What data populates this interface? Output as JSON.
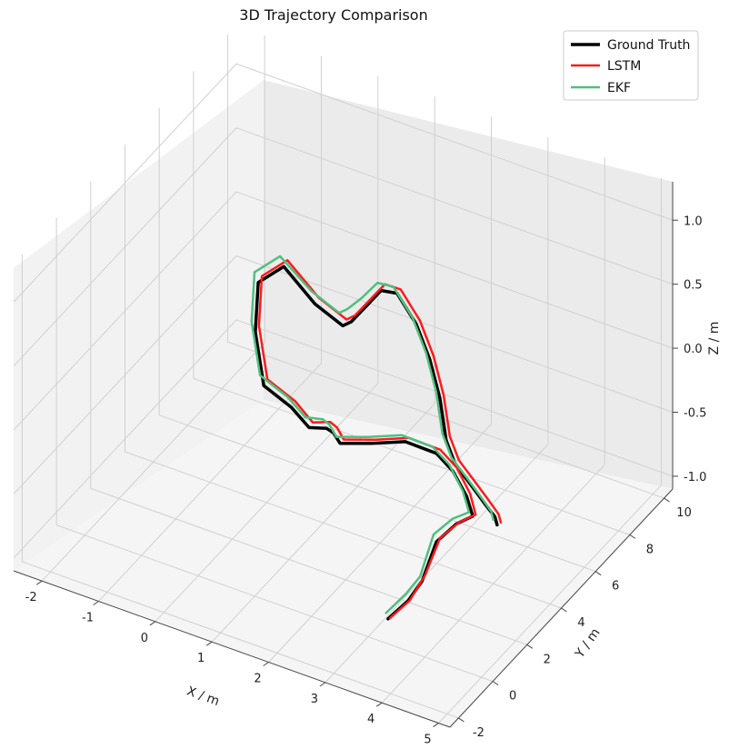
{
  "chart_data": {
    "type": "line",
    "projection": "3d",
    "title": "3D Trajectory Comparison",
    "xlabel": "X / m",
    "ylabel": "Y / m",
    "zlabel": "Z / m",
    "xlim": [
      -2.5,
      5.2
    ],
    "ylim": [
      -2.5,
      10.5
    ],
    "zlim": [
      -1.1,
      1.3
    ],
    "x_ticks": [
      "-2",
      "-1",
      "0",
      "1",
      "2",
      "3",
      "4",
      "5"
    ],
    "y_ticks": [
      "-2",
      "0",
      "2",
      "4",
      "6",
      "8",
      "10"
    ],
    "z_ticks": [
      "-1.0",
      "-0.5",
      "0.0",
      "0.5",
      "1.0"
    ],
    "grid": true,
    "legend_position": "top-right",
    "series": [
      {
        "name": "Ground Truth",
        "color": "#000000",
        "points": [
          [
            3.2,
            0.5,
            -1.0
          ],
          [
            3.4,
            1.0,
            -0.9
          ],
          [
            3.5,
            1.5,
            -0.8
          ],
          [
            3.6,
            2.0,
            -0.55
          ],
          [
            3.8,
            2.5,
            -0.45
          ],
          [
            4.0,
            2.8,
            -0.4
          ],
          [
            3.8,
            3.1,
            -0.32
          ],
          [
            3.5,
            3.3,
            -0.2
          ],
          [
            3.3,
            3.0,
            -0.05
          ],
          [
            2.9,
            2.5,
            0.05
          ],
          [
            2.4,
            2.2,
            0.0
          ],
          [
            1.9,
            2.0,
            -0.05
          ],
          [
            1.6,
            2.6,
            -0.1
          ],
          [
            1.3,
            3.2,
            -0.2
          ],
          [
            0.9,
            3.5,
            -0.3
          ],
          [
            0.5,
            3.8,
            -0.25
          ],
          [
            0.1,
            3.5,
            -0.1
          ],
          [
            -0.2,
            4.0,
            0.2
          ],
          [
            -0.3,
            4.5,
            0.5
          ],
          [
            0.0,
            5.0,
            0.6
          ],
          [
            0.4,
            5.5,
            0.3
          ],
          [
            0.8,
            5.8,
            0.15
          ],
          [
            1.1,
            5.3,
            0.3
          ],
          [
            1.5,
            4.8,
            0.55
          ],
          [
            1.9,
            4.4,
            0.8
          ],
          [
            2.3,
            4.0,
            0.9
          ],
          [
            2.7,
            3.8,
            0.75
          ],
          [
            3.0,
            3.6,
            0.55
          ],
          [
            3.3,
            3.2,
            0.35
          ],
          [
            3.5,
            2.9,
            0.1
          ],
          [
            3.6,
            3.1,
            -0.1
          ],
          [
            3.8,
            3.3,
            -0.25
          ],
          [
            4.1,
            3.2,
            -0.35
          ],
          [
            4.3,
            3.1,
            -0.4
          ],
          [
            4.4,
            2.9,
            -0.42
          ]
        ]
      },
      {
        "name": "LSTM",
        "color": "#ff1a1a",
        "points": [
          [
            3.25,
            0.45,
            -0.98
          ],
          [
            3.45,
            0.95,
            -0.88
          ],
          [
            3.55,
            1.5,
            -0.75
          ],
          [
            3.65,
            2.05,
            -0.52
          ],
          [
            3.85,
            2.5,
            -0.43
          ],
          [
            4.05,
            2.8,
            -0.38
          ],
          [
            3.85,
            3.15,
            -0.3
          ],
          [
            3.55,
            3.35,
            -0.17
          ],
          [
            3.35,
            3.05,
            -0.02
          ],
          [
            2.95,
            2.55,
            0.08
          ],
          [
            2.45,
            2.25,
            0.03
          ],
          [
            1.95,
            2.05,
            -0.02
          ],
          [
            1.65,
            2.65,
            -0.06
          ],
          [
            1.35,
            3.25,
            -0.15
          ],
          [
            0.95,
            3.55,
            -0.26
          ],
          [
            0.55,
            3.85,
            -0.2
          ],
          [
            0.15,
            3.55,
            -0.05
          ],
          [
            -0.15,
            4.05,
            0.25
          ],
          [
            -0.25,
            4.55,
            0.55
          ],
          [
            0.05,
            5.05,
            0.65
          ],
          [
            0.45,
            5.55,
            0.35
          ],
          [
            0.85,
            5.85,
            0.2
          ],
          [
            1.15,
            5.35,
            0.35
          ],
          [
            1.55,
            4.85,
            0.6
          ],
          [
            1.95,
            4.45,
            0.85
          ],
          [
            2.35,
            4.05,
            0.93
          ],
          [
            2.75,
            3.85,
            0.78
          ],
          [
            3.05,
            3.65,
            0.58
          ],
          [
            3.35,
            3.25,
            0.38
          ],
          [
            3.55,
            2.95,
            0.13
          ],
          [
            3.65,
            3.15,
            -0.07
          ],
          [
            3.85,
            3.35,
            -0.22
          ],
          [
            4.15,
            3.25,
            -0.32
          ],
          [
            4.35,
            3.15,
            -0.38
          ],
          [
            4.45,
            2.95,
            -0.4
          ]
        ]
      },
      {
        "name": "EKF",
        "color": "#4fbf7f",
        "points": [
          [
            3.15,
            0.55,
            -0.97
          ],
          [
            3.35,
            1.05,
            -0.86
          ],
          [
            3.45,
            1.55,
            -0.78
          ],
          [
            3.55,
            2.0,
            -0.5
          ],
          [
            3.75,
            2.45,
            -0.41
          ],
          [
            3.95,
            2.75,
            -0.37
          ],
          [
            3.75,
            3.05,
            -0.28
          ],
          [
            3.45,
            3.25,
            -0.15
          ],
          [
            3.25,
            2.95,
            0.0
          ],
          [
            2.85,
            2.45,
            0.1
          ],
          [
            2.35,
            2.15,
            0.05
          ],
          [
            1.85,
            1.95,
            0.0
          ],
          [
            1.55,
            2.55,
            -0.04
          ],
          [
            1.25,
            3.15,
            -0.13
          ],
          [
            0.85,
            3.45,
            -0.22
          ],
          [
            0.45,
            3.75,
            -0.17
          ],
          [
            0.05,
            3.45,
            -0.02
          ],
          [
            -0.25,
            3.95,
            0.28
          ],
          [
            -0.35,
            4.45,
            0.58
          ],
          [
            -0.05,
            4.95,
            0.68
          ],
          [
            0.35,
            5.45,
            0.4
          ],
          [
            0.75,
            5.75,
            0.25
          ],
          [
            1.05,
            5.25,
            0.4
          ],
          [
            1.45,
            4.75,
            0.62
          ],
          [
            1.85,
            4.35,
            0.86
          ],
          [
            2.25,
            3.95,
            0.95
          ],
          [
            2.65,
            3.75,
            0.8
          ],
          [
            2.95,
            3.55,
            0.6
          ],
          [
            3.25,
            3.15,
            0.4
          ],
          [
            3.45,
            2.85,
            0.15
          ],
          [
            3.55,
            3.05,
            -0.05
          ],
          [
            3.75,
            3.25,
            -0.2
          ],
          [
            4.05,
            3.15,
            -0.3
          ],
          [
            4.25,
            3.05,
            -0.36
          ],
          [
            4.35,
            2.85,
            -0.38
          ]
        ]
      }
    ]
  }
}
